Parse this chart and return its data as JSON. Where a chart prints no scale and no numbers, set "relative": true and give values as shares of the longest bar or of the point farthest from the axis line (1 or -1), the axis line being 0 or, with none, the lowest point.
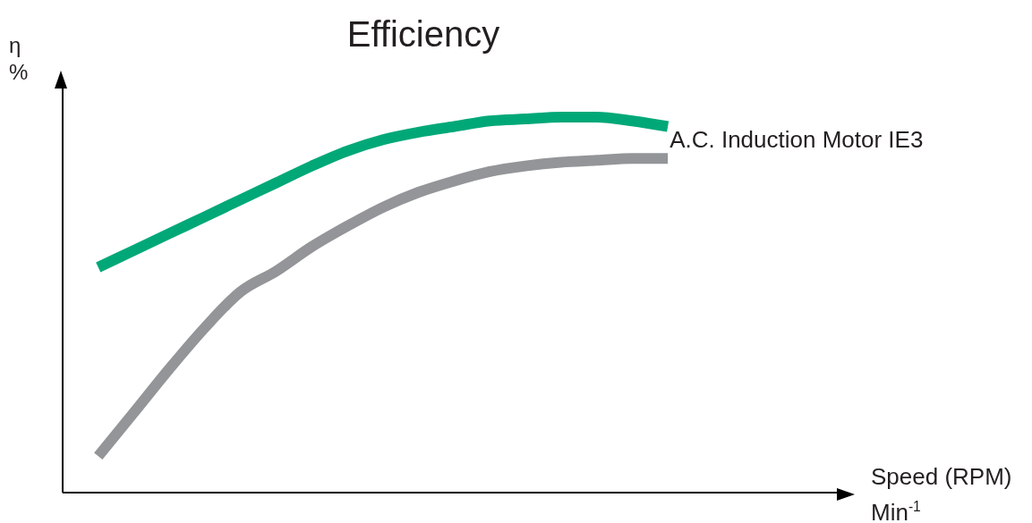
{
  "chart_data": {
    "type": "line",
    "title": "Efficiency",
    "xlabel": "Speed (RPM)\nMin$^{-1}$",
    "ylabel": "η\n%",
    "relative": true,
    "marker": "none",
    "categories": [
      null,
      null,
      null,
      null,
      null,
      null,
      null,
      null,
      null,
      null,
      null,
      null,
      null,
      null,
      null,
      null,
      null,
      null,
      null,
      null,
      null,
      null,
      null
    ],
    "series": [
      {
        "color": "#00a878",
        "values": [
          null,
          0.6,
          0.645,
          0.69,
          0.735,
          0.78,
          0.825,
          0.87,
          0.91,
          0.94,
          0.96,
          0.975,
          0.99,
          0.995,
          1.0,
          1.0,
          0.99,
          0.975,
          null,
          null,
          null,
          null,
          null
        ]
      },
      {
        "name": "A.C. Induction Motor IE3",
        "color": "#939598",
        "values": [
          null,
          0.097,
          0.213,
          0.33,
          0.44,
          0.535,
          0.59,
          0.655,
          0.71,
          0.76,
          0.8,
          0.83,
          0.855,
          0.87,
          0.88,
          0.885,
          0.89,
          0.89,
          null,
          null,
          null,
          null,
          null
        ]
      }
    ]
  }
}
